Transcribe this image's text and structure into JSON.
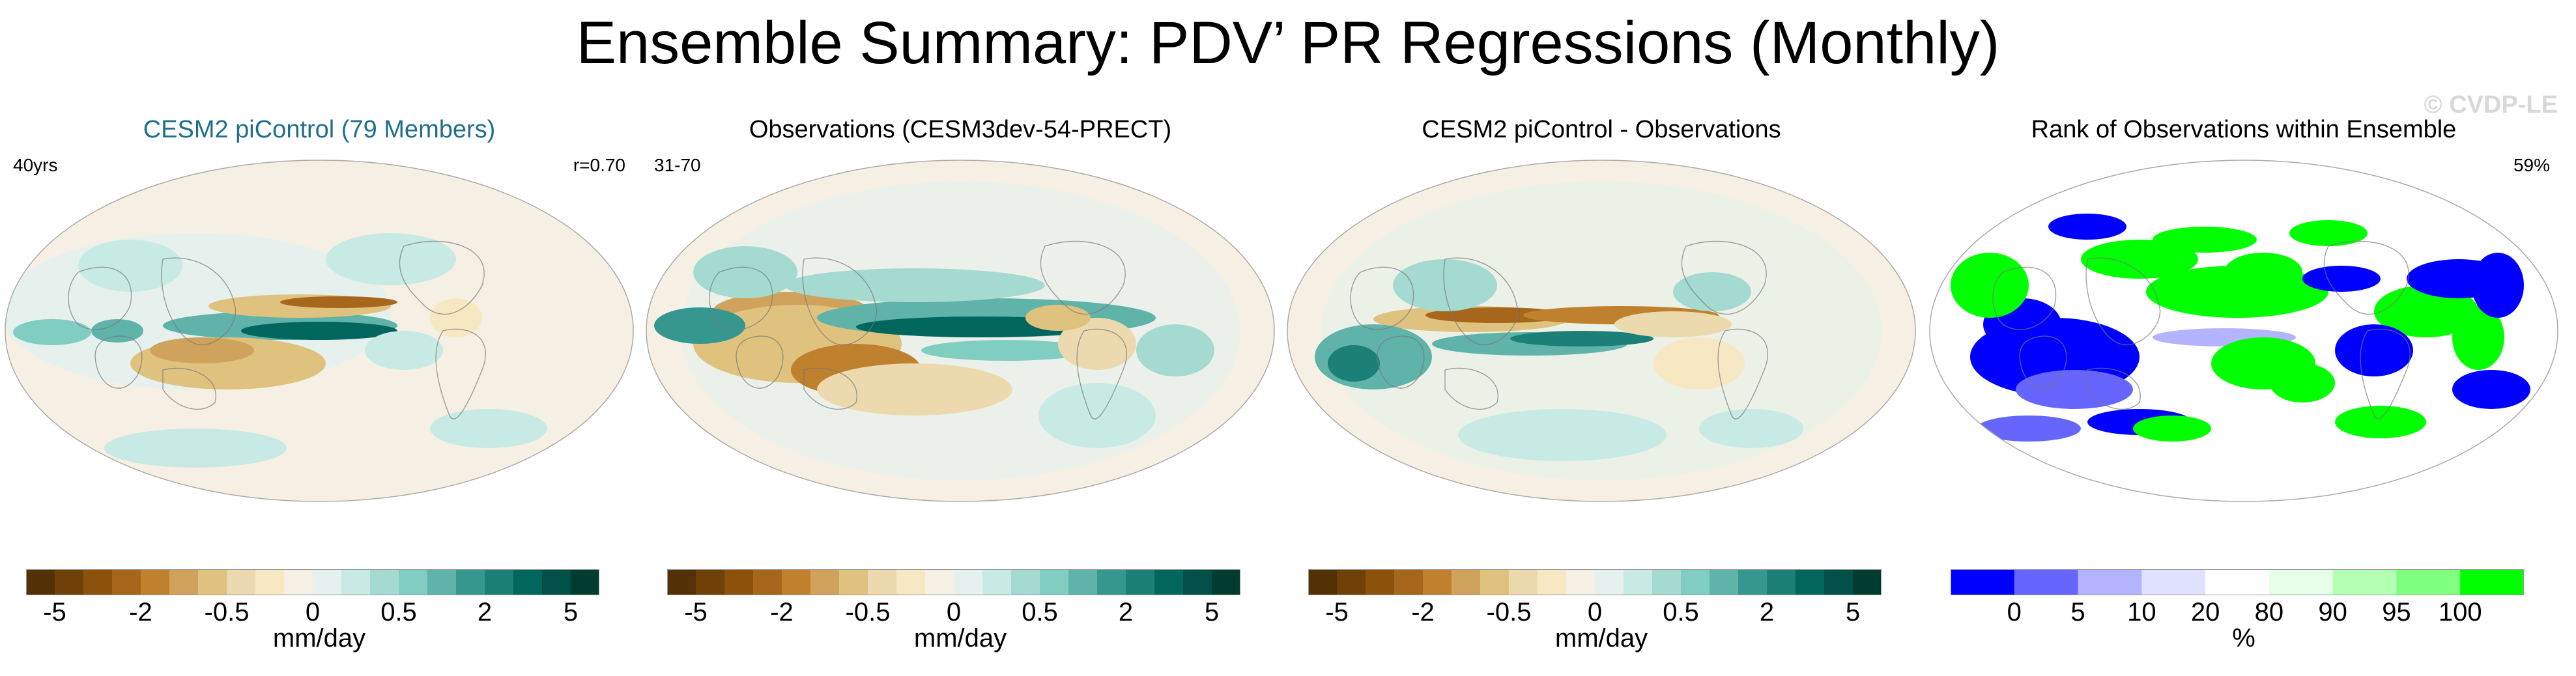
{
  "title": "Ensemble Summary: PDV’ PR Regressions (Monthly)",
  "watermark": "© CVDP-LE",
  "colors": {
    "diverging": [
      "#543005",
      "#6e4108",
      "#8c510a",
      "#a6671c",
      "#bf812d",
      "#d0a35c",
      "#dfc27d",
      "#ecdaae",
      "#f6e8c3",
      "#f5f0e3",
      "#e4f1ee",
      "#c7eae5",
      "#a5dad1",
      "#80cdc1",
      "#5fb3a9",
      "#35978f",
      "#1d8078",
      "#01665e",
      "#005047",
      "#003c30"
    ],
    "rank": [
      "#0000ff",
      "#6666ff",
      "#b3b3ff",
      "#e0e0ff",
      "#ffffff",
      "#e6ffe6",
      "#b3ffb3",
      "#80ff80",
      "#00ff00"
    ],
    "title_blue": "#1f6f8b"
  },
  "chart_data": [
    {
      "type": "heatmap",
      "title": "CESM2 piControl (79 Members)",
      "left_label": "40yrs",
      "right_label": "r=0.70",
      "colorbar": {
        "ticks": [
          "-5",
          "-2",
          "-0.5",
          "0",
          "0.5",
          "2",
          "5"
        ],
        "label": "mm/day"
      },
      "map": {
        "projection": "robinson",
        "dominant_pattern": "tropical Pacific positive band, negative off-equator"
      }
    },
    {
      "type": "heatmap",
      "title": "Observations (CESM3dev-54-PRECT)",
      "left_label": "31-70",
      "right_label": "",
      "colorbar": {
        "ticks": [
          "-5",
          "-2",
          "-0.5",
          "0",
          "0.5",
          "2",
          "5"
        ],
        "label": "mm/day"
      },
      "map": {
        "projection": "robinson",
        "dominant_pattern": "strong positive band across tropics, strong negative Maritime Continent"
      }
    },
    {
      "type": "heatmap",
      "title": "CESM2 piControl - Observations",
      "left_label": "",
      "right_label": "",
      "colorbar": {
        "ticks": [
          "-5",
          "-2",
          "-0.5",
          "0",
          "0.5",
          "2",
          "5"
        ],
        "label": "mm/day"
      },
      "map": {
        "projection": "robinson",
        "dominant_pattern": "difference field"
      }
    },
    {
      "type": "heatmap",
      "title": "Rank of Observations within Ensemble",
      "left_label": "",
      "right_label": "59%",
      "colorbar": {
        "ticks": [
          "0",
          "5",
          "10",
          "20",
          "80",
          "90",
          "95",
          "100"
        ],
        "label": "%"
      },
      "map": {
        "projection": "robinson",
        "dominant_pattern": "blue/green patches on white"
      }
    }
  ]
}
